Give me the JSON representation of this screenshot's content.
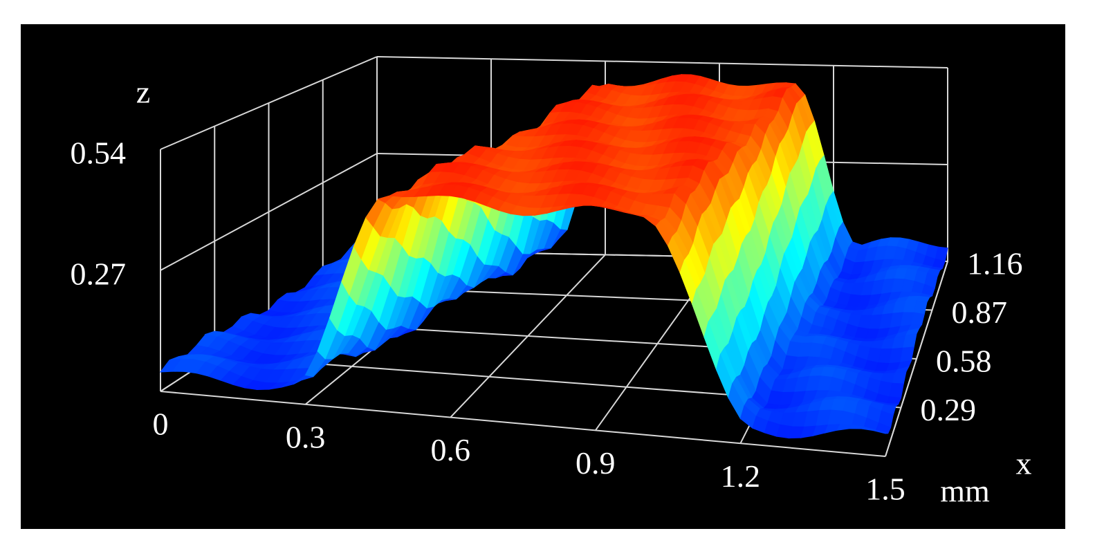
{
  "chart_data": {
    "type": "surface3d",
    "x_label": "x",
    "unit": "mm",
    "z_label": "z",
    "xlim": [
      0,
      1.5
    ],
    "xticks": [
      0,
      0.3,
      0.6,
      0.9,
      1.2,
      1.5
    ],
    "ylim": [
      0,
      1.16
    ],
    "yticks": [
      0.29,
      0.58,
      0.87,
      1.16
    ],
    "zlim": [
      0,
      0.54
    ],
    "zticks": [
      0.27,
      0.54
    ],
    "grid": true
  }
}
